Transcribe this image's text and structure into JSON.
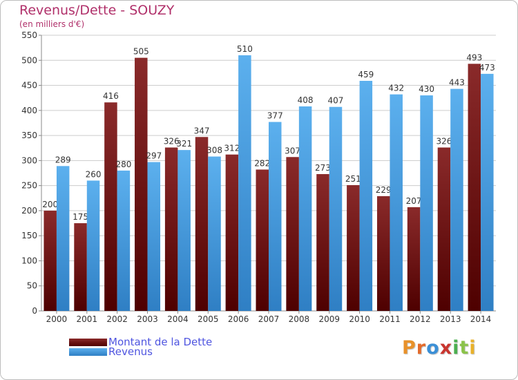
{
  "header": {
    "title": "Revenus/Dette - SOUZY",
    "subtitle": "(en milliers d'€)"
  },
  "legend": [
    {
      "label": "Montant de la Dette",
      "color": "#7a1a1a"
    },
    {
      "label": "Revenus",
      "color": "#4aa3e6"
    }
  ],
  "logo": {
    "text": "Proxiti",
    "colors": [
      "#e8912a",
      "#e36b2c",
      "#3b8fd6",
      "#c9352f",
      "#4caf50",
      "#8bc34a",
      "#e8b12a"
    ]
  },
  "colors": {
    "debt_top": "#8a2a2a",
    "debt_bottom": "#4e0000",
    "rev_top": "#5cb0ee",
    "rev_bottom": "#2f7fc4",
    "grid": "#cccccc",
    "label": "#333333"
  },
  "chart_data": {
    "type": "bar",
    "categories": [
      "2000",
      "2001",
      "2002",
      "2003",
      "2004",
      "2005",
      "2006",
      "2007",
      "2008",
      "2009",
      "2010",
      "2011",
      "2012",
      "2013",
      "2014"
    ],
    "series": [
      {
        "name": "Montant de la Dette",
        "values": [
          200,
          175,
          416,
          505,
          326,
          347,
          312,
          282,
          307,
          273,
          251,
          229,
          207,
          326,
          493
        ]
      },
      {
        "name": "Revenus",
        "values": [
          289,
          260,
          280,
          297,
          321,
          308,
          510,
          377,
          408,
          407,
          459,
          432,
          430,
          443,
          473
        ]
      }
    ],
    "yticks": [
      0,
      50,
      100,
      150,
      200,
      250,
      300,
      350,
      400,
      450,
      500,
      550
    ],
    "ylim": [
      0,
      550
    ],
    "grid": true,
    "legend_position": "bottom-left"
  }
}
